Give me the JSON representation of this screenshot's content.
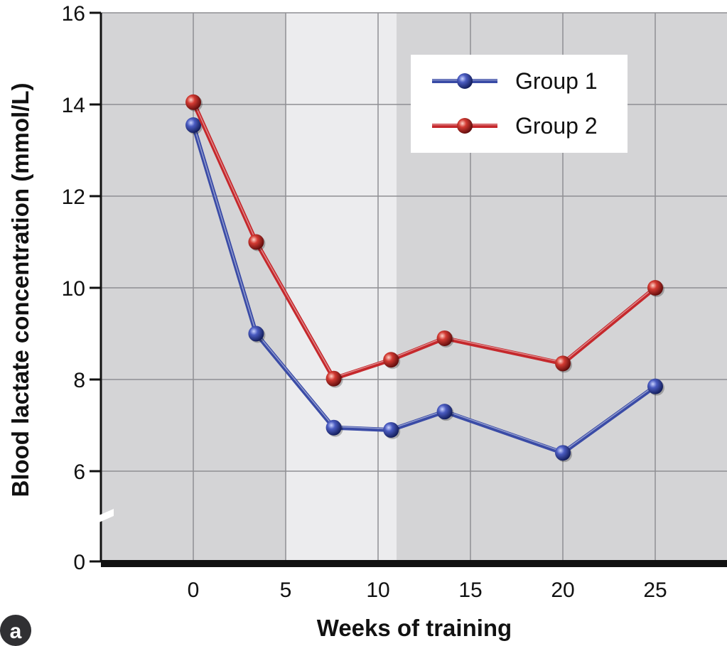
{
  "panel_label": "a",
  "colors": {
    "series1": "#3a4ba6",
    "series2": "#c5282c",
    "plot_bg": "#d4d4d6",
    "highlight_bg": "#ececee",
    "grid": "#8f8f93"
  },
  "chart_data": {
    "type": "line",
    "title": "",
    "xlabel": "Weeks of training",
    "ylabel": "Blood lactate concentration (mmol/L)",
    "xlim": [
      -5,
      29
    ],
    "ylim": [
      0,
      16
    ],
    "y_axis_break": [
      0,
      5
    ],
    "x_ticks": [
      "0",
      "5",
      "10",
      "15",
      "20",
      "25"
    ],
    "y_ticks": [
      "0",
      "6",
      "8",
      "10",
      "12",
      "14",
      "16"
    ],
    "highlight_band": [
      5,
      11
    ],
    "grid": true,
    "legend_position": "top-right",
    "series": [
      {
        "name": "Group 1",
        "color": "#3a4ba6",
        "x": [
          0,
          3.4,
          7.6,
          10.7,
          13.6,
          20,
          25
        ],
        "y": [
          13.55,
          9.0,
          6.95,
          6.9,
          7.3,
          6.4,
          7.85
        ]
      },
      {
        "name": "Group 2",
        "color": "#c5282c",
        "x": [
          0,
          3.4,
          7.6,
          10.7,
          13.6,
          20,
          25
        ],
        "y": [
          14.05,
          11.0,
          8.02,
          8.43,
          8.9,
          8.35,
          10.0
        ]
      }
    ]
  }
}
